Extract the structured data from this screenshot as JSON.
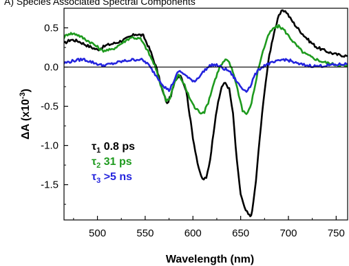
{
  "chart_data": {
    "type": "line",
    "title": "A) Species Associated Spectral Components",
    "xlabel": "Wavelength (nm)",
    "ylabel_parts": [
      "ΔA (x10",
      "-3",
      ")"
    ],
    "xlim": [
      465,
      762
    ],
    "ylim": [
      -1.95,
      0.75
    ],
    "xticks": [
      500,
      550,
      600,
      650,
      700,
      750
    ],
    "yticks": [
      0.5,
      0.0,
      -0.5,
      -1.0,
      -1.5
    ],
    "ytick_labels": [
      "0.5",
      "0.0",
      "-0.5",
      "-1.0",
      "-1.5"
    ],
    "zero_line": true,
    "legend_placement": "lower-left",
    "series": [
      {
        "name": "τ1 0.8 ps",
        "legend": {
          "symbol": "τ",
          "sub": "1",
          "text": " 0.8 ps"
        },
        "color": "#000000",
        "x": [
          465,
          472,
          480,
          490,
          500,
          510,
          520,
          530,
          540,
          548,
          555,
          562,
          568,
          573,
          577,
          582,
          587,
          593,
          600,
          606,
          610,
          614,
          618,
          624,
          630,
          634,
          638,
          642,
          646,
          650,
          654,
          658,
          660,
          662,
          666,
          670,
          675,
          680,
          685,
          690,
          694,
          698,
          702,
          708,
          715,
          722,
          730,
          740,
          750,
          762
        ],
        "y": [
          0.3,
          0.35,
          0.33,
          0.27,
          0.22,
          0.28,
          0.31,
          0.36,
          0.42,
          0.4,
          0.22,
          -0.02,
          -0.3,
          -0.47,
          -0.36,
          -0.15,
          -0.1,
          -0.3,
          -0.9,
          -1.3,
          -1.43,
          -1.42,
          -1.18,
          -0.6,
          -0.25,
          -0.2,
          -0.28,
          -0.6,
          -1.2,
          -1.62,
          -1.8,
          -1.88,
          -1.9,
          -1.85,
          -1.45,
          -0.9,
          -0.3,
          0.15,
          0.45,
          0.65,
          0.73,
          0.7,
          0.62,
          0.52,
          0.42,
          0.33,
          0.25,
          0.2,
          0.16,
          0.14
        ]
      },
      {
        "name": "τ2 31 ps",
        "legend": {
          "symbol": "τ",
          "sub": "2",
          "text": " 31 ps"
        },
        "color": "#1e9a1e",
        "x": [
          465,
          470,
          478,
          485,
          495,
          505,
          515,
          525,
          535,
          545,
          552,
          560,
          566,
          572,
          576,
          580,
          585,
          590,
          596,
          602,
          608,
          612,
          616,
          622,
          628,
          634,
          638,
          643,
          648,
          652,
          656,
          660,
          664,
          668,
          672,
          676,
          680,
          685,
          690,
          695,
          700,
          708,
          716,
          725,
          735,
          745,
          755,
          762
        ],
        "y": [
          0.38,
          0.43,
          0.42,
          0.37,
          0.3,
          0.21,
          0.22,
          0.3,
          0.38,
          0.36,
          0.22,
          0.02,
          -0.22,
          -0.42,
          -0.4,
          -0.22,
          -0.1,
          -0.2,
          -0.38,
          -0.52,
          -0.58,
          -0.57,
          -0.45,
          -0.2,
          0.0,
          0.09,
          0.06,
          -0.1,
          -0.35,
          -0.55,
          -0.6,
          -0.52,
          -0.3,
          -0.05,
          0.15,
          0.3,
          0.43,
          0.5,
          0.52,
          0.48,
          0.4,
          0.28,
          0.18,
          0.12,
          0.07,
          0.04,
          0.02,
          0.01
        ]
      },
      {
        "name": "τ3 >5 ns",
        "legend": {
          "symbol": "τ",
          "sub": "3",
          "text": " >5 ns"
        },
        "color": "#2424dd",
        "x": [
          465,
          475,
          485,
          495,
          505,
          515,
          525,
          535,
          545,
          552,
          558,
          564,
          570,
          575,
          580,
          585,
          590,
          596,
          602,
          608,
          614,
          620,
          626,
          632,
          638,
          644,
          648,
          652,
          656,
          660,
          664,
          670,
          676,
          682,
          688,
          695,
          702,
          710,
          720,
          730,
          740,
          750,
          762
        ],
        "y": [
          0.05,
          0.08,
          0.1,
          0.06,
          0.02,
          0.04,
          0.07,
          0.09,
          0.1,
          0.05,
          -0.05,
          -0.15,
          -0.25,
          -0.3,
          -0.18,
          -0.05,
          -0.08,
          -0.15,
          -0.18,
          -0.1,
          -0.02,
          0.03,
          0.02,
          -0.02,
          -0.05,
          -0.15,
          -0.22,
          -0.28,
          -0.3,
          -0.25,
          -0.12,
          -0.02,
          0.03,
          0.05,
          0.07,
          0.1,
          0.08,
          0.04,
          0.02,
          0.01,
          0.02,
          0.03,
          0.04
        ]
      }
    ]
  }
}
